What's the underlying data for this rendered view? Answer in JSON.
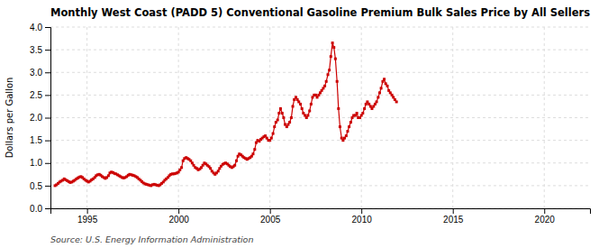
{
  "chart_data": {
    "type": "line",
    "title": "Monthly West Coast (PADD 5) Conventional Gasoline Premium Bulk Sales Price by All Sellers",
    "ylabel": "Dollars per Gallon",
    "annotations": [
      "Source: U.S. Energy Information Administration"
    ],
    "grid": true,
    "xlim": [
      1993.0,
      2022.5
    ],
    "ylim": [
      0.0,
      4.0
    ],
    "xticks": [
      1995,
      2000,
      2005,
      2010,
      2015,
      2020
    ],
    "yticks": [
      {
        "value": 0.0,
        "label": "0.0"
      },
      0.5,
      {
        "value": 1.0,
        "label": "1.0"
      },
      1.5,
      {
        "value": 2.0,
        "label": "2.0"
      },
      2.5,
      {
        "value": 3.0,
        "label": "3.0"
      },
      3.5,
      {
        "value": 4.0,
        "label": "4.0"
      }
    ],
    "x": [
      1993.25,
      1993.33,
      1993.42,
      1993.5,
      1993.58,
      1993.67,
      1993.75,
      1993.83,
      1993.92,
      1994.0,
      1994.08,
      1994.17,
      1994.25,
      1994.33,
      1994.42,
      1994.5,
      1994.58,
      1994.67,
      1994.75,
      1994.83,
      1994.92,
      1995.0,
      1995.08,
      1995.17,
      1995.25,
      1995.33,
      1995.42,
      1995.5,
      1995.58,
      1995.67,
      1995.75,
      1995.83,
      1995.92,
      1996.0,
      1996.08,
      1996.17,
      1996.25,
      1996.33,
      1996.42,
      1996.5,
      1996.58,
      1996.67,
      1996.75,
      1996.83,
      1996.92,
      1997.0,
      1997.08,
      1997.17,
      1997.25,
      1997.33,
      1997.42,
      1997.5,
      1997.58,
      1997.67,
      1997.75,
      1997.83,
      1997.92,
      1998.0,
      1998.08,
      1998.17,
      1998.25,
      1998.33,
      1998.42,
      1998.5,
      1998.58,
      1998.67,
      1998.75,
      1998.83,
      1998.92,
      1999.0,
      1999.08,
      1999.17,
      1999.25,
      1999.33,
      1999.42,
      1999.5,
      1999.58,
      1999.67,
      1999.75,
      1999.83,
      1999.92,
      2000.0,
      2000.08,
      2000.17,
      2000.25,
      2000.33,
      2000.42,
      2000.5,
      2000.58,
      2000.67,
      2000.75,
      2000.83,
      2000.92,
      2001.0,
      2001.08,
      2001.17,
      2001.25,
      2001.33,
      2001.42,
      2001.5,
      2001.58,
      2001.67,
      2001.75,
      2001.83,
      2001.92,
      2002.0,
      2002.08,
      2002.17,
      2002.25,
      2002.33,
      2002.42,
      2002.5,
      2002.58,
      2002.67,
      2002.75,
      2002.83,
      2002.92,
      2003.0,
      2003.08,
      2003.17,
      2003.25,
      2003.33,
      2003.42,
      2003.5,
      2003.58,
      2003.67,
      2003.75,
      2003.83,
      2003.92,
      2004.0,
      2004.08,
      2004.17,
      2004.25,
      2004.33,
      2004.42,
      2004.5,
      2004.58,
      2004.67,
      2004.75,
      2004.83,
      2004.92,
      2005.0,
      2005.08,
      2005.17,
      2005.25,
      2005.33,
      2005.42,
      2005.5,
      2005.58,
      2005.67,
      2005.75,
      2005.83,
      2005.92,
      2006.0,
      2006.08,
      2006.17,
      2006.25,
      2006.33,
      2006.42,
      2006.5,
      2006.58,
      2006.67,
      2006.75,
      2006.83,
      2006.92,
      2007.0,
      2007.08,
      2007.17,
      2007.25,
      2007.33,
      2007.42,
      2007.5,
      2007.58,
      2007.67,
      2007.75,
      2007.83,
      2007.92,
      2008.0,
      2008.08,
      2008.17,
      2008.25,
      2008.33,
      2008.42,
      2008.5,
      2008.58,
      2008.67,
      2008.75,
      2008.83,
      2008.92,
      2009.0,
      2009.08,
      2009.17,
      2009.25,
      2009.33,
      2009.42,
      2009.5,
      2009.58,
      2009.67,
      2009.75,
      2009.83,
      2009.92,
      2010.0,
      2010.08,
      2010.17,
      2010.25,
      2010.33,
      2010.42,
      2010.5,
      2010.58,
      2010.67,
      2010.75,
      2010.83,
      2010.92,
      2011.0,
      2011.08,
      2011.17,
      2011.25,
      2011.33,
      2011.42,
      2011.5,
      2011.58,
      2011.67,
      2011.75,
      2011.83,
      2011.92
    ],
    "series": [
      {
        "color": "#cc0000",
        "marker": "square",
        "line_style": "solid",
        "values": [
          0.5,
          0.52,
          0.55,
          0.58,
          0.6,
          0.62,
          0.65,
          0.63,
          0.61,
          0.59,
          0.57,
          0.58,
          0.6,
          0.62,
          0.65,
          0.67,
          0.69,
          0.7,
          0.68,
          0.65,
          0.62,
          0.6,
          0.58,
          0.6,
          0.63,
          0.65,
          0.68,
          0.72,
          0.74,
          0.75,
          0.73,
          0.7,
          0.68,
          0.66,
          0.68,
          0.72,
          0.78,
          0.8,
          0.79,
          0.77,
          0.76,
          0.74,
          0.72,
          0.7,
          0.68,
          0.67,
          0.68,
          0.7,
          0.73,
          0.75,
          0.74,
          0.73,
          0.72,
          0.7,
          0.68,
          0.65,
          0.62,
          0.59,
          0.56,
          0.54,
          0.53,
          0.52,
          0.51,
          0.5,
          0.52,
          0.53,
          0.52,
          0.51,
          0.5,
          0.52,
          0.55,
          0.58,
          0.62,
          0.65,
          0.68,
          0.72,
          0.75,
          0.76,
          0.76,
          0.77,
          0.78,
          0.8,
          0.85,
          0.9,
          1.05,
          1.1,
          1.12,
          1.1,
          1.08,
          1.05,
          1.0,
          0.95,
          0.9,
          0.88,
          0.85,
          0.87,
          0.9,
          0.95,
          1.0,
          0.98,
          0.95,
          0.92,
          0.88,
          0.82,
          0.78,
          0.75,
          0.78,
          0.82,
          0.88,
          0.93,
          0.97,
          0.99,
          1.0,
          0.98,
          0.95,
          0.92,
          0.9,
          0.92,
          0.95,
          1.05,
          1.15,
          1.2,
          1.18,
          1.15,
          1.12,
          1.1,
          1.08,
          1.1,
          1.12,
          1.15,
          1.2,
          1.3,
          1.45,
          1.5,
          1.48,
          1.52,
          1.55,
          1.58,
          1.6,
          1.55,
          1.5,
          1.5,
          1.55,
          1.65,
          1.8,
          1.9,
          1.95,
          2.1,
          2.2,
          2.1,
          2.0,
          1.85,
          1.8,
          1.85,
          1.9,
          2.0,
          2.25,
          2.4,
          2.45,
          2.4,
          2.35,
          2.3,
          2.2,
          2.1,
          2.05,
          2.0,
          2.05,
          2.15,
          2.3,
          2.45,
          2.5,
          2.5,
          2.45,
          2.5,
          2.55,
          2.6,
          2.65,
          2.7,
          2.8,
          2.95,
          3.05,
          3.35,
          3.65,
          3.55,
          3.3,
          2.8,
          2.2,
          1.8,
          1.55,
          1.5,
          1.55,
          1.6,
          1.7,
          1.8,
          1.9,
          2.0,
          2.05,
          2.05,
          2.1,
          2.0,
          2.0,
          2.05,
          2.1,
          2.2,
          2.3,
          2.35,
          2.3,
          2.25,
          2.2,
          2.25,
          2.3,
          2.35,
          2.45,
          2.55,
          2.65,
          2.8,
          2.85,
          2.75,
          2.7,
          2.6,
          2.55,
          2.5,
          2.45,
          2.4,
          2.35
        ]
      }
    ]
  }
}
